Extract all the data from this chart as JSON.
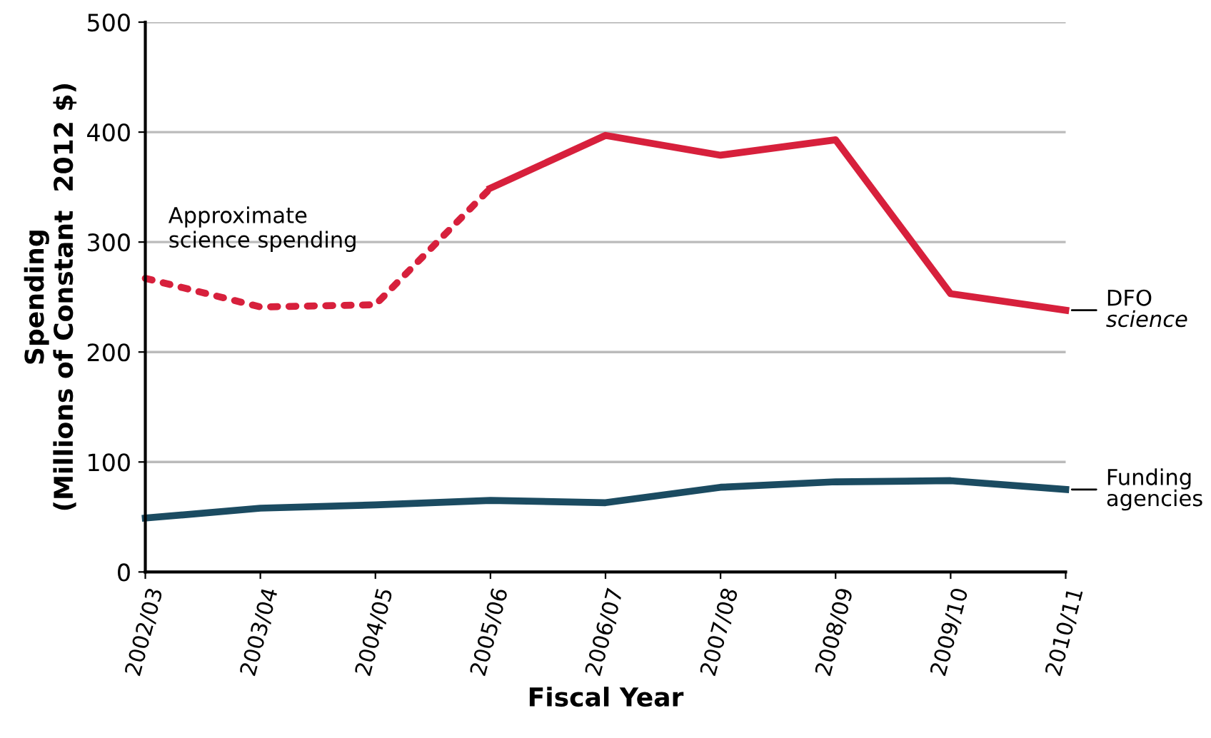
{
  "chart_data": {
    "type": "line",
    "xlabel": "Fiscal Year",
    "ylabel": "Spending\n(Millions of Constant  2012 $)",
    "categories": [
      "2002/03",
      "2003/04",
      "2004/05",
      "2005/06",
      "2006/07",
      "2007/08",
      "2008/09",
      "2009/10",
      "2010/11"
    ],
    "series": [
      {
        "color": "#d7203c",
        "line_style": "dotted",
        "values": [
          267,
          241,
          243,
          349,
          null,
          null,
          null,
          null,
          null
        ]
      },
      {
        "name": "DFO science",
        "color": "#d7203c",
        "line_style": "solid",
        "values": [
          null,
          null,
          null,
          349,
          397,
          379,
          393,
          253,
          238
        ]
      },
      {
        "name": "Funding agencies",
        "color": "#1b4b61",
        "line_style": "solid",
        "values": [
          49,
          58,
          61,
          65,
          63,
          77,
          82,
          83,
          75
        ]
      }
    ],
    "annotations": [
      {
        "text": "Approximate\nscience spending",
        "x": "2003/04",
        "y": 241
      }
    ],
    "ylim": [
      0,
      500
    ],
    "yticks": [
      0,
      100,
      200,
      300,
      400,
      500
    ],
    "grid": "y",
    "legend": false,
    "marker": "none"
  }
}
